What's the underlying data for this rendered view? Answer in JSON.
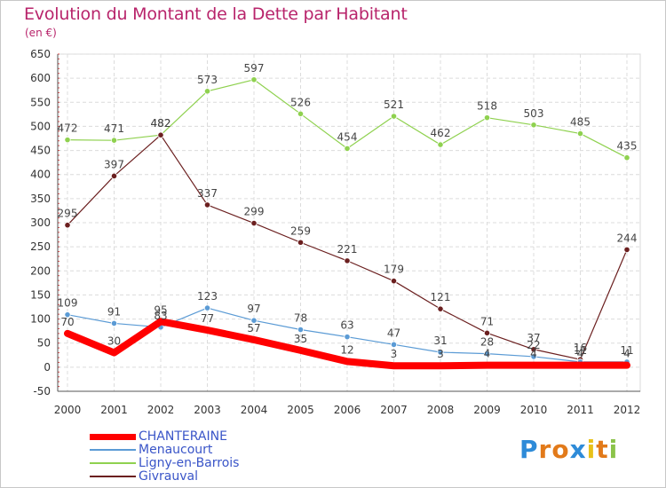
{
  "header": {
    "title": "Evolution du Montant de la Dette par Habitant",
    "subtitle": "(en €)"
  },
  "logo": {
    "letters": [
      "P",
      "r",
      "o",
      "x",
      "i",
      "t",
      "i"
    ],
    "letter_colors": [
      "#2e8bd8",
      "#e27a1a",
      "#e27a1a",
      "#2e8bd8",
      "#e8c11a",
      "#e27a1a",
      "#8bc34a"
    ]
  },
  "chart_data": {
    "type": "line",
    "title": "Evolution du Montant de la Dette par Habitant",
    "ylabel": "(en €)",
    "xlabel": "",
    "x": [
      "2000",
      "2001",
      "2002",
      "2003",
      "2004",
      "2005",
      "2006",
      "2007",
      "2008",
      "2009",
      "2010",
      "2011",
      "2012"
    ],
    "ylim": [
      -50,
      650
    ],
    "yticks": [
      "-50",
      "0",
      "50",
      "100",
      "150",
      "200",
      "250",
      "300",
      "350",
      "400",
      "450",
      "500",
      "550",
      "600",
      "650"
    ],
    "grid": true,
    "legend_position": "bottom-left",
    "series": [
      {
        "name": "CHANTERAINE",
        "color": "#ff0000",
        "values": [
          70,
          30,
          95,
          77,
          57,
          35,
          12,
          3,
          3,
          4,
          4,
          4,
          4
        ],
        "labels": [
          "70",
          "30",
          "95",
          "77",
          "57",
          "35",
          "12",
          "3",
          "3",
          "4",
          "4",
          "4",
          "4"
        ]
      },
      {
        "name": "Menaucourt",
        "color": "#5b9bd5",
        "values": [
          109,
          91,
          83,
          123,
          97,
          78,
          63,
          47,
          31,
          28,
          22,
          11,
          11
        ],
        "labels": [
          "109",
          "91",
          "83",
          "123",
          "97",
          "78",
          "63",
          "47",
          "31",
          "28",
          "22",
          "11",
          "11"
        ]
      },
      {
        "name": "Ligny-en-Barrois",
        "color": "#8fd14f",
        "values": [
          472,
          471,
          482,
          573,
          597,
          526,
          454,
          521,
          462,
          518,
          503,
          485,
          435
        ],
        "labels": [
          "472",
          "471",
          "482",
          "573",
          "597",
          "526",
          "454",
          "521",
          "462",
          "518",
          "503",
          "485",
          "435"
        ]
      },
      {
        "name": "Givrauval",
        "color": "#6b1f1f",
        "values": [
          295,
          397,
          482,
          337,
          299,
          259,
          221,
          179,
          121,
          71,
          37,
          16,
          244
        ],
        "labels": [
          "295",
          "397",
          "482",
          "337",
          "299",
          "259",
          "221",
          "179",
          "121",
          "71",
          "37",
          "16",
          "244"
        ]
      }
    ]
  }
}
